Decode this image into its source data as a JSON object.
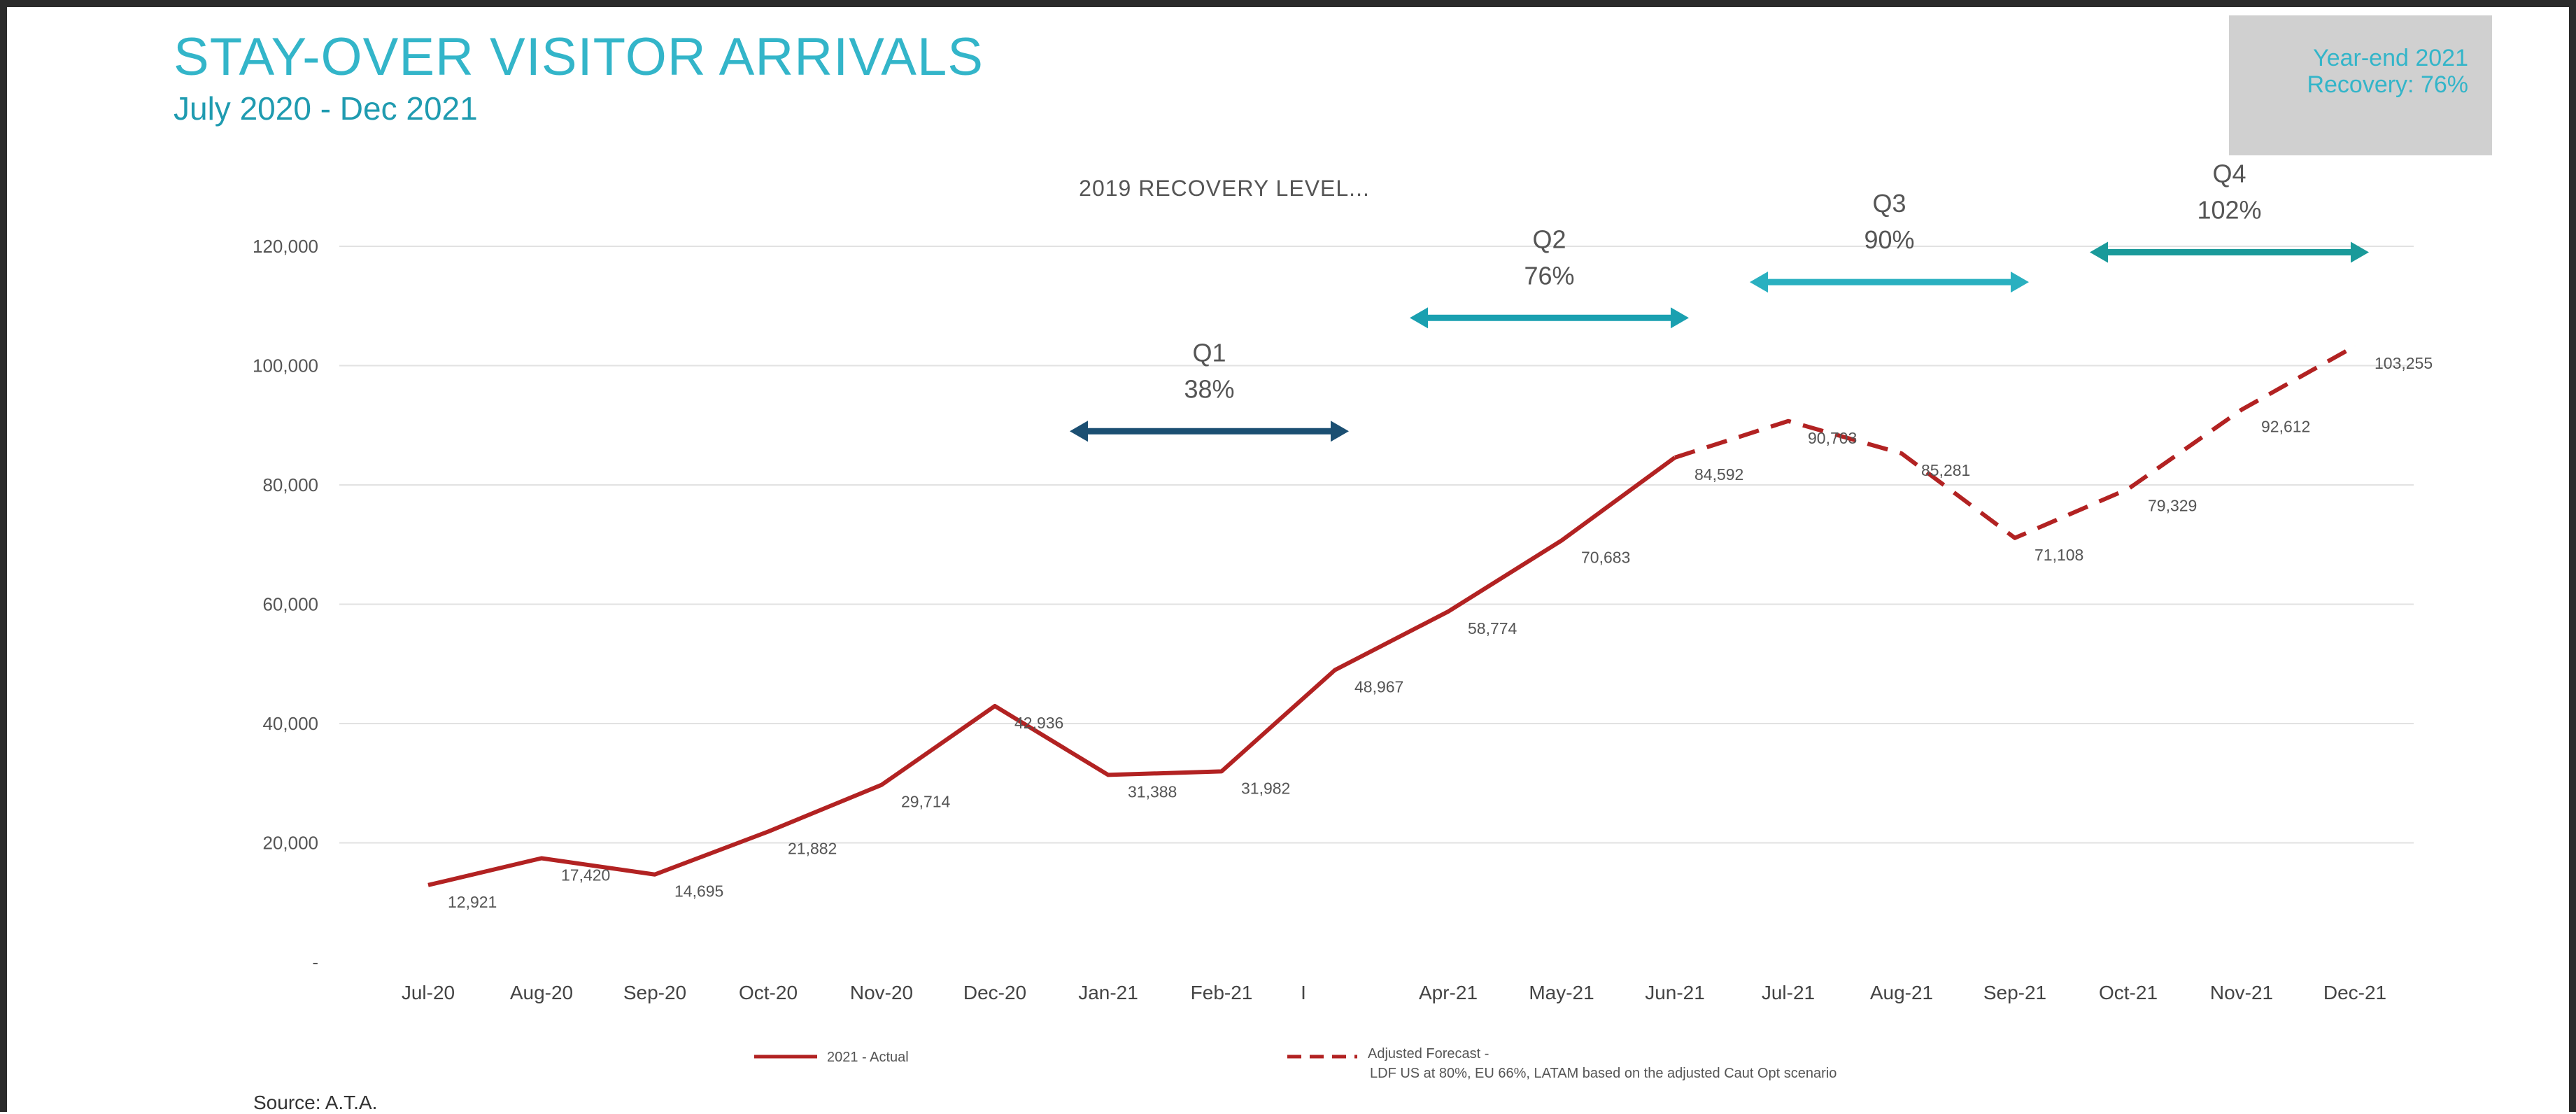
{
  "header": {
    "title": "STAY-OVER VISITOR ARRIVALS",
    "subtitle": "July 2020 - Dec 2021"
  },
  "recovery_box": {
    "line1": "Year-end 2021",
    "line2": "Recovery: 76%"
  },
  "source": "Source: A.T.A.",
  "colors": {
    "title": "#33b5c9",
    "line": "#b22222",
    "q1": "#1b4f72",
    "q2": "#1aa0b0",
    "q3": "#2ab0c0",
    "q4": "#1a9a9a",
    "box": "#d0d0d0"
  },
  "chart_data": {
    "type": "line",
    "title": "2019 RECOVERY LEVEL...",
    "categories": [
      "Jul-20",
      "Aug-20",
      "Sep-20",
      "Oct-20",
      "Nov-20",
      "Dec-20",
      "Jan-21",
      "Feb-21",
      "",
      "Apr-21",
      "May-21",
      "Jun-21",
      "Jul-21",
      "Aug-21",
      "Sep-21",
      "Oct-21",
      "Nov-21",
      "Dec-21"
    ],
    "y_ticks": [
      "-",
      "20,000",
      "40,000",
      "60,000",
      "80,000",
      "100,000",
      "120,000"
    ],
    "y_tick_values": [
      0,
      20000,
      40000,
      60000,
      80000,
      100000,
      120000
    ],
    "ylim": [
      0,
      120000
    ],
    "grid": true,
    "legend_position": "bottom",
    "series": [
      {
        "name": "2021 - Actual",
        "style": "solid",
        "points": [
          {
            "x": "Jul-20",
            "y": 12921,
            "label": "12,921"
          },
          {
            "x": "Aug-20",
            "y": 17420,
            "label": "17,420"
          },
          {
            "x": "Sep-20",
            "y": 14695,
            "label": "14,695"
          },
          {
            "x": "Oct-20",
            "y": 21882,
            "label": "21,882"
          },
          {
            "x": "Nov-20",
            "y": 29714,
            "label": "29,714"
          },
          {
            "x": "Dec-20",
            "y": 42936,
            "label": "42,936"
          },
          {
            "x": "Jan-21",
            "y": 31388,
            "label": "31,388"
          },
          {
            "x": "Feb-21",
            "y": 31982,
            "label": "31,982"
          },
          {
            "x": "",
            "y": 48967,
            "label": "48,967"
          },
          {
            "x": "Apr-21",
            "y": 58774,
            "label": "58,774"
          },
          {
            "x": "May-21",
            "y": 70683,
            "label": "70,683"
          },
          {
            "x": "Jun-21",
            "y": 84592,
            "label": "84,592"
          }
        ]
      },
      {
        "name": "Adjusted Forecast -",
        "name_line2": "LDF US at 80%, EU 66%, LATAM based on the adjusted Caut Opt scenario",
        "style": "dashed",
        "points": [
          {
            "x": "Jun-21",
            "y": 84592,
            "label": ""
          },
          {
            "x": "Jul-21",
            "y": 90703,
            "label": "90,703"
          },
          {
            "x": "Aug-21",
            "y": 85281,
            "label": "85,281"
          },
          {
            "x": "Sep-21",
            "y": 71108,
            "label": "71,108"
          },
          {
            "x": "Oct-21",
            "y": 79329,
            "label": "79,329"
          },
          {
            "x": "Nov-21",
            "y": 92612,
            "label": "92,612"
          },
          {
            "x": "Dec-21",
            "y": 103255,
            "label": "103,255"
          }
        ]
      }
    ],
    "annotations": [
      {
        "name": "Q1",
        "value": "38%",
        "from": "Jan-21",
        "to": "",
        "level": 89000
      },
      {
        "name": "Q2",
        "value": "76%",
        "from": "Apr-21",
        "to": "Jun-21",
        "level": 108000
      },
      {
        "name": "Q3",
        "value": "90%",
        "from": "Jul-21",
        "to": "Sep-21",
        "level": 114000
      },
      {
        "name": "Q4",
        "value": "102%",
        "from": "Oct-21",
        "to": "Dec-21",
        "level": 119000
      }
    ]
  }
}
